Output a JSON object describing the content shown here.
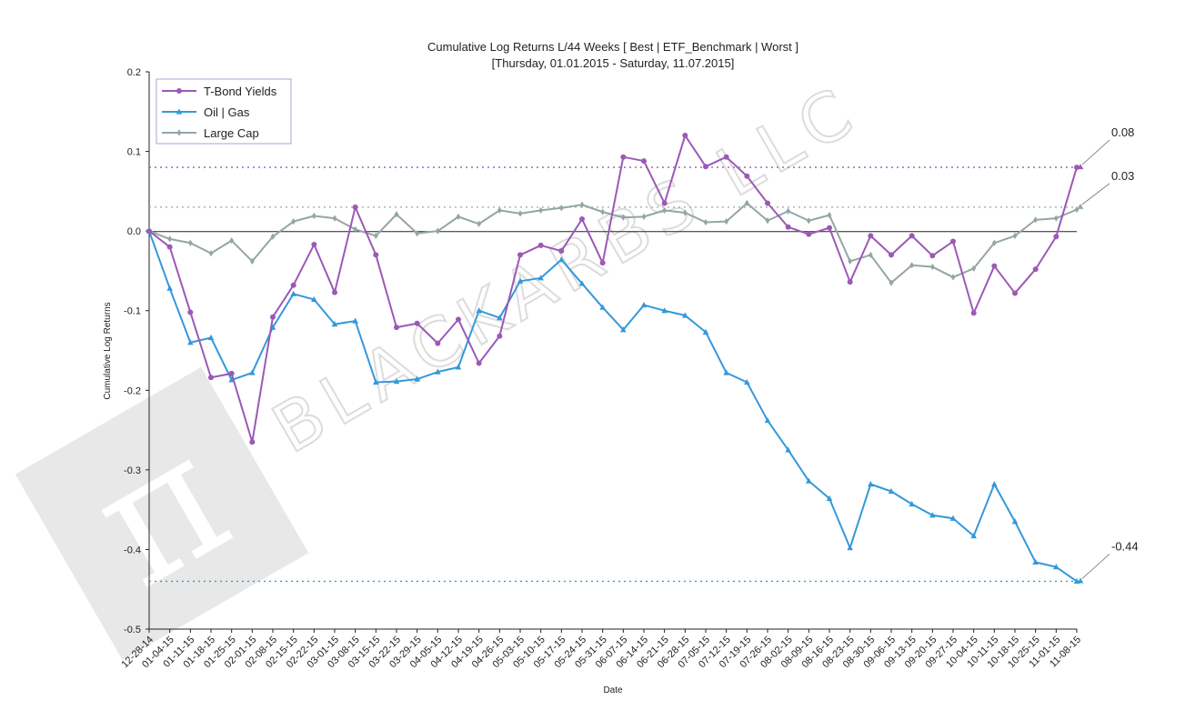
{
  "watermark": {
    "text": "BLACKARBS LLC",
    "logo_glyph": "π"
  },
  "chart_data": {
    "type": "line",
    "title": "Cumulative Log Returns L/44 Weeks [ Best | ETF_Benchmark | Worst ]",
    "subtitle": "[Thursday, 01.01.2015 - Saturday, 11.07.2015]",
    "xlabel": "Date",
    "ylabel": "Cumulative Log Returns",
    "ylim": [
      -0.5,
      0.2
    ],
    "yticks": [
      "0.2",
      "0.1",
      "0.0",
      "-0.1",
      "-0.2",
      "-0.3",
      "-0.4",
      "-0.5"
    ],
    "legend_position": "top-left",
    "grid": false,
    "categories": [
      "12-28-14",
      "01-04-15",
      "01-11-15",
      "01-18-15",
      "01-25-15",
      "02-01-15",
      "02-08-15",
      "02-15-15",
      "02-22-15",
      "03-01-15",
      "03-08-15",
      "03-15-15",
      "03-22-15",
      "03-29-15",
      "04-05-15",
      "04-12-15",
      "04-19-15",
      "04-26-15",
      "05-03-15",
      "05-10-15",
      "05-17-15",
      "05-24-15",
      "05-31-15",
      "06-07-15",
      "06-14-15",
      "06-21-15",
      "06-28-15",
      "07-05-15",
      "07-12-15",
      "07-19-15",
      "07-26-15",
      "08-02-15",
      "08-09-15",
      "08-16-15",
      "08-23-15",
      "08-30-15",
      "09-06-15",
      "09-13-15",
      "09-20-15",
      "09-27-15",
      "10-04-15",
      "10-11-15",
      "10-18-15",
      "10-25-15",
      "11-01-15",
      "11-08-15"
    ],
    "series": [
      {
        "name": "T-Bond Yields",
        "color": "#9b59b6",
        "marker": "circle",
        "values": [
          0.0,
          -0.02,
          -0.102,
          -0.184,
          -0.179,
          -0.265,
          -0.108,
          -0.068,
          -0.017,
          -0.077,
          0.03,
          -0.03,
          -0.121,
          -0.116,
          -0.141,
          -0.111,
          -0.166,
          -0.132,
          -0.03,
          -0.018,
          -0.025,
          0.015,
          -0.04,
          0.093,
          0.088,
          0.035,
          0.12,
          0.081,
          0.093,
          0.069,
          0.035,
          0.005,
          -0.004,
          0.004,
          -0.064,
          -0.006,
          -0.03,
          -0.006,
          -0.031,
          -0.013,
          -0.103,
          -0.044,
          -0.078,
          -0.048,
          -0.007,
          0.08
        ],
        "end_value": 0.08,
        "end_label": "0.08"
      },
      {
        "name": "Oil | Gas",
        "color": "#3498db",
        "marker": "triangle",
        "values": [
          0.0,
          -0.072,
          -0.14,
          -0.134,
          -0.187,
          -0.178,
          -0.121,
          -0.079,
          -0.086,
          -0.117,
          -0.113,
          -0.19,
          -0.189,
          -0.186,
          -0.177,
          -0.171,
          -0.1,
          -0.109,
          -0.063,
          -0.059,
          -0.036,
          -0.066,
          -0.096,
          -0.124,
          -0.093,
          -0.1,
          -0.106,
          -0.127,
          -0.178,
          -0.19,
          -0.238,
          -0.275,
          -0.314,
          -0.336,
          -0.398,
          -0.318,
          -0.327,
          -0.343,
          -0.357,
          -0.361,
          -0.383,
          -0.318,
          -0.365,
          -0.416,
          -0.422,
          -0.44
        ],
        "end_value": -0.44,
        "end_label": "-0.44"
      },
      {
        "name": "Large Cap",
        "color": "#95a5a6",
        "marker": "diamond",
        "values": [
          0.0,
          -0.01,
          -0.015,
          -0.028,
          -0.012,
          -0.038,
          -0.007,
          0.012,
          0.019,
          0.016,
          0.002,
          -0.006,
          0.021,
          -0.003,
          0.0,
          0.018,
          0.009,
          0.026,
          0.022,
          0.026,
          0.029,
          0.033,
          0.024,
          0.017,
          0.018,
          0.026,
          0.023,
          0.011,
          0.012,
          0.035,
          0.013,
          0.025,
          0.013,
          0.02,
          -0.038,
          -0.03,
          -0.065,
          -0.043,
          -0.045,
          -0.058,
          -0.047,
          -0.015,
          -0.006,
          0.014,
          0.016,
          0.027
        ],
        "end_value": 0.03,
        "end_label": "0.03"
      }
    ]
  }
}
